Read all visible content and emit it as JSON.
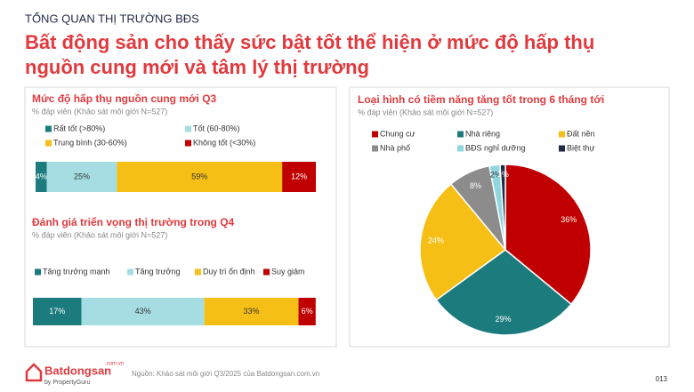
{
  "header": {
    "kicker": "TỔNG QUAN THỊ TRƯỜNG BĐS",
    "title": [
      "Bất động sản cho thấy sức bật tốt thể hiện ở mức độ hấp thụ",
      "nguồn cung mới và tâm lý thị trường"
    ]
  },
  "footer": {
    "logo": {
      "name": "Batdongsan",
      "suffix": ".com.vn",
      "byline": "by PropertyGuru"
    },
    "source": "Nguồn: Khảo sát môi giới Q3/2025 của Batdongsan.com.vn",
    "page": "013"
  },
  "chart_data": [
    {
      "type": "stacked-bar",
      "title": "Mức độ hấp thụ nguồn cung mới Q3",
      "subtitle": "% đáp viên (Khảo sát môi giới N=527)",
      "categories": [
        null
      ],
      "xlim": [
        0,
        100
      ],
      "series": [
        {
          "name": "Rất tốt (>80%)",
          "color": "#1b7b7d",
          "values": [
            4
          ],
          "value_labels": [
            "4%"
          ]
        },
        {
          "name": "Tốt (60-80%)",
          "color": "#a6dde2",
          "values": [
            25
          ],
          "value_labels": [
            "25%"
          ]
        },
        {
          "name": "Trung bình (30-60%)",
          "color": "#f6bf16",
          "values": [
            59
          ],
          "value_labels": [
            "59%"
          ]
        },
        {
          "name": "Không tốt (<30%)",
          "color": "#c00000",
          "values": [
            12
          ],
          "value_labels": [
            "12%"
          ]
        }
      ]
    },
    {
      "type": "stacked-bar",
      "title": "Đánh giá triển vọng thị trường trong Q4",
      "subtitle": "% đáp viên (Khảo sát môi giới N=527)",
      "categories": [
        null
      ],
      "xlim": [
        0,
        100
      ],
      "series": [
        {
          "name": "Tăng trưởng mạnh",
          "color": "#1b7b7d",
          "values": [
            17
          ],
          "value_labels": [
            "17%"
          ]
        },
        {
          "name": "Tăng trưởng",
          "color": "#a6dde2",
          "values": [
            43
          ],
          "value_labels": [
            "43%"
          ]
        },
        {
          "name": "Duy trì ổn định",
          "color": "#f6bf16",
          "values": [
            33
          ],
          "value_labels": [
            "33%"
          ]
        },
        {
          "name": "Suy giảm",
          "color": "#c00000",
          "values": [
            6
          ],
          "value_labels": [
            "6%"
          ]
        }
      ]
    },
    {
      "type": "pie",
      "title": "Loại hình có tiềm năng tăng tốt trong 6 tháng tới",
      "subtitle": "% đáp viên (Khảo sát môi giới N=527)",
      "categories": [
        "Chung cư",
        "Nhà riêng",
        "Đất nền",
        "Nhà phố",
        "BĐS nghỉ dưỡng",
        "Biệt thự"
      ],
      "values": [
        36,
        29,
        24,
        8,
        2,
        1
      ],
      "value_labels": [
        "36%",
        "29%",
        "24%",
        "8%",
        "2%",
        "1%"
      ],
      "colors": [
        "#c00000",
        "#1b7b7d",
        "#f6bf16",
        "#8c8c8c",
        "#8fd6df",
        "#1f2a44"
      ]
    }
  ]
}
